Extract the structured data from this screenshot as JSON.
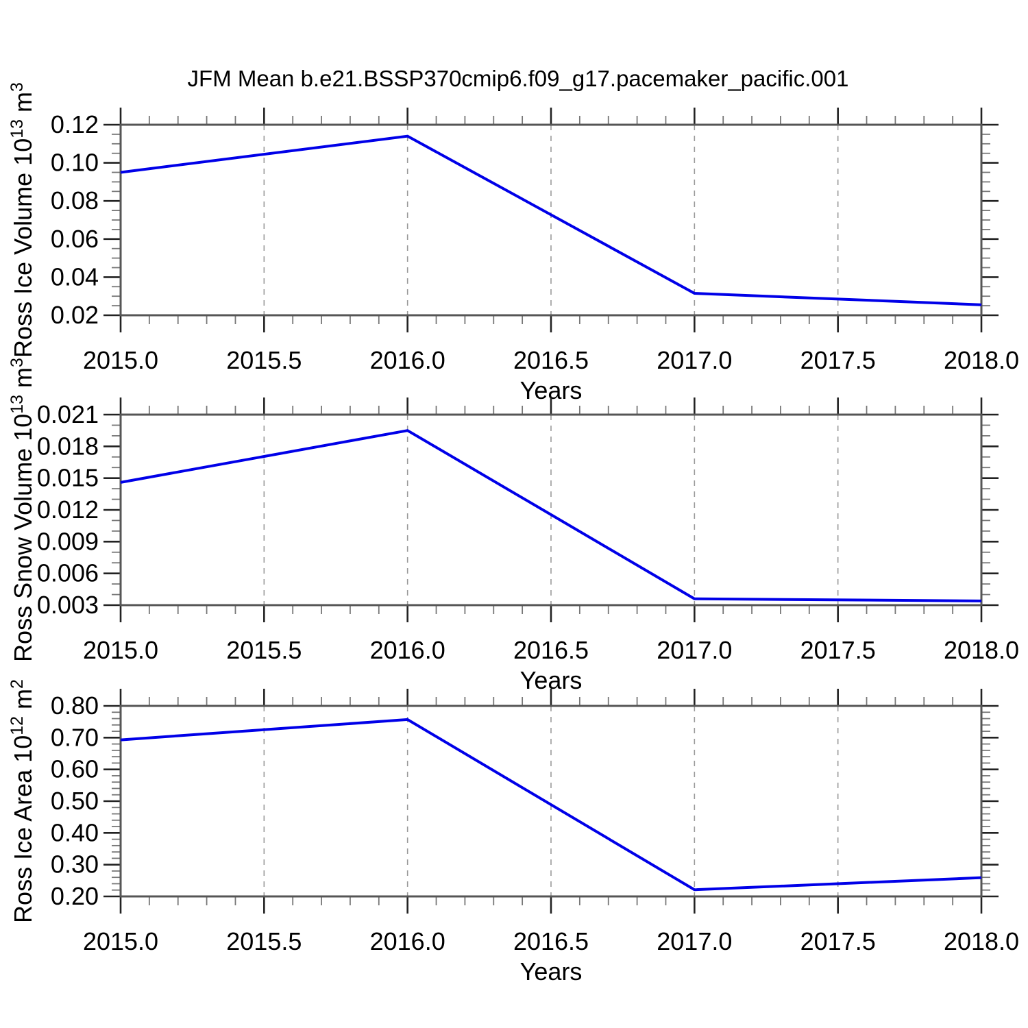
{
  "title": "JFM Mean b.e21.BSSP370cmip6.f09_g17.pacemaker_pacific.001",
  "colors": {
    "line": "#0000e8",
    "frame": "#555555",
    "major_tick": "#222222",
    "minor_tick": "#777777",
    "gridline": "#999999"
  },
  "chart_data": [
    {
      "type": "line",
      "name": "ross-ice-volume",
      "ylabel_parts": [
        {
          "t": "Ross Ice Volume 10"
        },
        {
          "t": "13",
          "sup": true
        },
        {
          "t": " m"
        },
        {
          "t": "3",
          "sup": true
        }
      ],
      "xlabel": "Years",
      "x": [
        2015.0,
        2016.0,
        2017.0,
        2018.0
      ],
      "values": [
        0.095,
        0.114,
        0.0315,
        0.0255
      ],
      "xlim": [
        2015.0,
        2018.0
      ],
      "ylim": [
        0.02,
        0.12
      ],
      "y_major_ticks": [
        0.02,
        0.04,
        0.06,
        0.08,
        0.1,
        0.12
      ],
      "y_tick_labels": [
        "0.02",
        "0.04",
        "0.06",
        "0.08",
        "0.10",
        "0.12"
      ],
      "y_minor_step": 0.005,
      "x_major_ticks": [
        2015.0,
        2015.5,
        2016.0,
        2016.5,
        2017.0,
        2017.5,
        2018.0
      ],
      "x_tick_labels": [
        "2015.0",
        "2015.5",
        "2016.0",
        "2016.5",
        "2017.0",
        "2017.5",
        "2018.0"
      ],
      "x_minor_step": 0.1,
      "grid_x": [
        2015.5,
        2016.0,
        2016.5,
        2017.0,
        2017.5
      ],
      "grid_on": true,
      "legend": "none"
    },
    {
      "type": "line",
      "name": "ross-snow-volume",
      "ylabel_parts": [
        {
          "t": "Ross Snow Volume 10"
        },
        {
          "t": "13",
          "sup": true
        },
        {
          "t": " m"
        },
        {
          "t": "3",
          "sup": true
        }
      ],
      "xlabel": "Years",
      "x": [
        2015.0,
        2016.0,
        2017.0,
        2018.0
      ],
      "values": [
        0.0146,
        0.0195,
        0.0036,
        0.0034
      ],
      "xlim": [
        2015.0,
        2018.0
      ],
      "ylim": [
        0.003,
        0.021
      ],
      "y_major_ticks": [
        0.003,
        0.006,
        0.009,
        0.012,
        0.015,
        0.018,
        0.021
      ],
      "y_tick_labels": [
        "0.003",
        "0.006",
        "0.009",
        "0.012",
        "0.015",
        "0.018",
        "0.021"
      ],
      "y_minor_step": 0.001,
      "x_major_ticks": [
        2015.0,
        2015.5,
        2016.0,
        2016.5,
        2017.0,
        2017.5,
        2018.0
      ],
      "x_tick_labels": [
        "2015.0",
        "2015.5",
        "2016.0",
        "2016.5",
        "2017.0",
        "2017.5",
        "2018.0"
      ],
      "x_minor_step": 0.1,
      "grid_x": [
        2015.5,
        2016.0,
        2016.5,
        2017.0,
        2017.5
      ],
      "grid_on": true,
      "legend": "none"
    },
    {
      "type": "line",
      "name": "ross-ice-area",
      "ylabel_parts": [
        {
          "t": "Ross Ice Area 10"
        },
        {
          "t": "12",
          "sup": true
        },
        {
          "t": " m"
        },
        {
          "t": "2",
          "sup": true
        }
      ],
      "xlabel": "Years",
      "x": [
        2015.0,
        2016.0,
        2017.0,
        2018.0
      ],
      "values": [
        0.693,
        0.757,
        0.221,
        0.259
      ],
      "xlim": [
        2015.0,
        2018.0
      ],
      "ylim": [
        0.2,
        0.8
      ],
      "y_major_ticks": [
        0.2,
        0.3,
        0.4,
        0.5,
        0.6,
        0.7,
        0.8
      ],
      "y_tick_labels": [
        "0.20",
        "0.30",
        "0.40",
        "0.50",
        "0.60",
        "0.70",
        "0.80"
      ],
      "y_minor_step": 0.02,
      "x_major_ticks": [
        2015.0,
        2015.5,
        2016.0,
        2016.5,
        2017.0,
        2017.5,
        2018.0
      ],
      "x_tick_labels": [
        "2015.0",
        "2015.5",
        "2016.0",
        "2016.5",
        "2017.0",
        "2017.5",
        "2018.0"
      ],
      "x_minor_step": 0.1,
      "grid_x": [
        2015.5,
        2016.0,
        2016.5,
        2017.0,
        2017.5
      ],
      "grid_on": true,
      "legend": "none"
    }
  ]
}
